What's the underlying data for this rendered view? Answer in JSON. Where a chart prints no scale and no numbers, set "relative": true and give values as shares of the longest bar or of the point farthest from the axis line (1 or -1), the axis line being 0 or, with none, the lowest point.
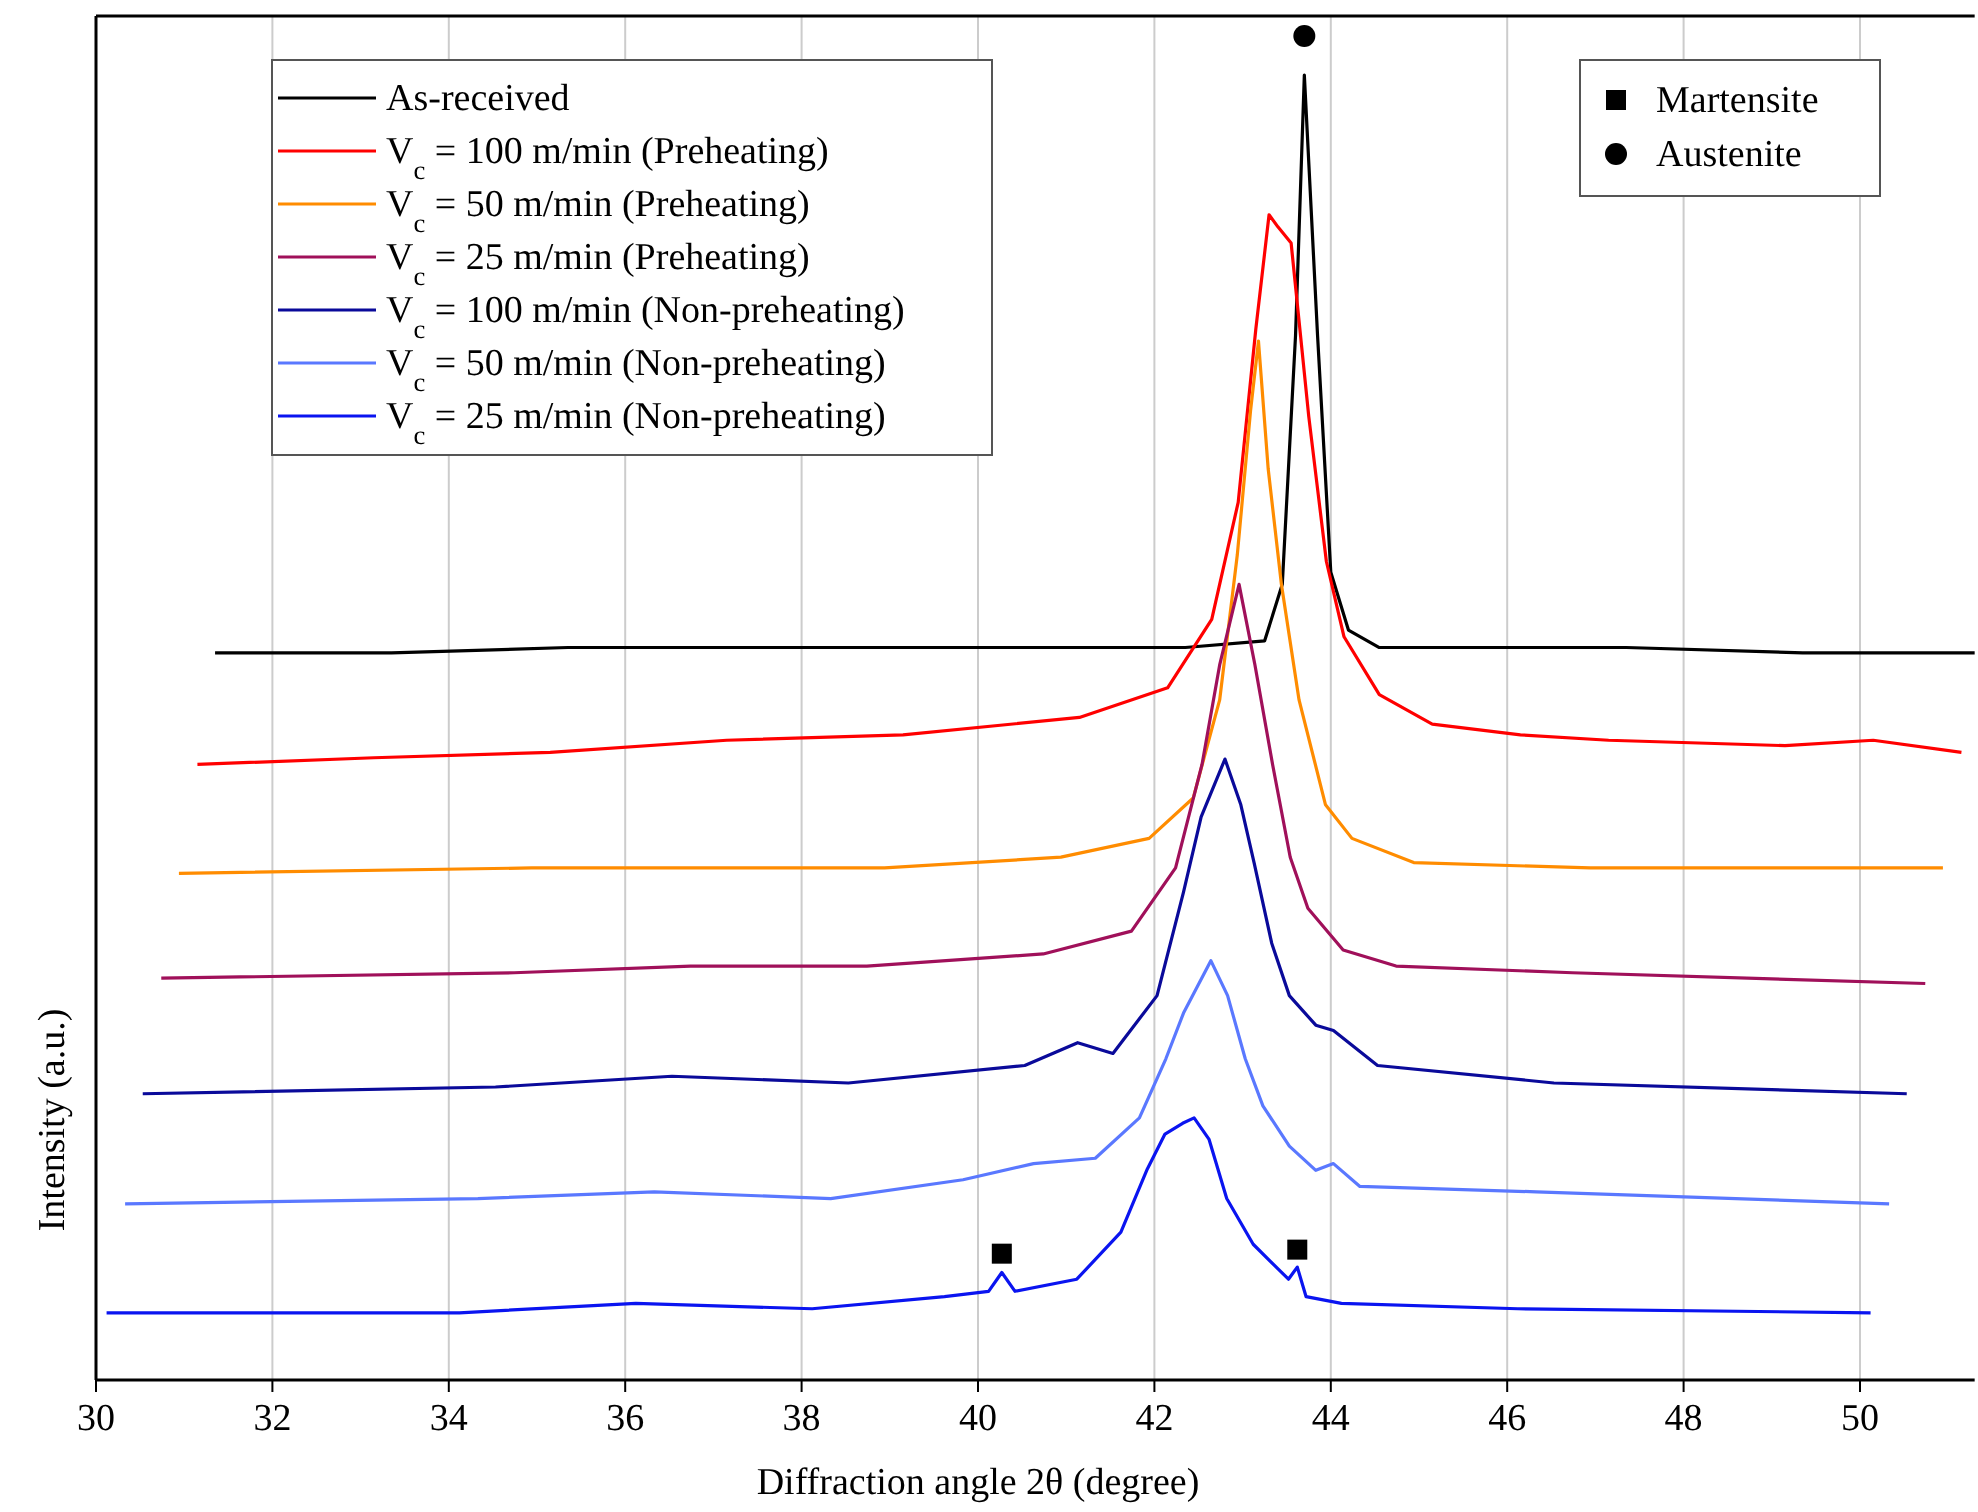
{
  "chart_data": {
    "type": "line",
    "relative": true,
    "xlabel": "Diffraction angle 2θ (degree)",
    "ylabel": "Intensity (a.u.)",
    "xlim": [
      30,
      51.3
    ],
    "xticks": [
      30,
      32,
      34,
      36,
      38,
      40,
      42,
      44,
      46,
      48,
      50
    ],
    "grid": true,
    "legend": "top left",
    "line_style": "solid",
    "series": [
      {
        "name": "As-received",
        "color": "#000000",
        "x": [
          31.35,
          33.35,
          35.35,
          37.35,
          39.35,
          41.35,
          42.35,
          43.25,
          43.45,
          43.6,
          43.7,
          43.85,
          44,
          44.2,
          44.55,
          45.35,
          47.35,
          49.35,
          51.3
        ],
        "values": [
          0.541,
          0.541,
          0.545,
          0.545,
          0.545,
          0.545,
          0.545,
          0.55,
          0.592,
          0.777,
          0.971,
          0.777,
          0.601,
          0.558,
          0.545,
          0.545,
          0.545,
          0.541,
          0.541
        ]
      },
      {
        "type": "scatter",
        "name": "Austenite",
        "color": "#000000",
        "marker": "circle",
        "x": [
          43.7
        ],
        "values": [
          1
        ]
      },
      {
        "name": "V$_{c}$ = 100 m/min (Preheating)",
        "color": "#ff0000",
        "x": [
          31.15,
          33.15,
          35.15,
          37.15,
          39.15,
          41.15,
          42.15,
          42.65,
          42.95,
          43.15,
          43.3,
          43.4,
          43.55,
          43.75,
          43.95,
          44.15,
          44.55,
          45.15,
          46.15,
          47.15,
          49.15,
          50.15,
          51.15
        ],
        "values": [
          0.458,
          0.463,
          0.467,
          0.476,
          0.48,
          0.493,
          0.515,
          0.566,
          0.653,
          0.782,
          0.867,
          0.858,
          0.846,
          0.717,
          0.609,
          0.553,
          0.51,
          0.488,
          0.48,
          0.476,
          0.472,
          0.476,
          0.467
        ]
      },
      {
        "name": "V$_{c}$ = 50 m/min (Preheating)",
        "color": "#ff8c00",
        "x": [
          30.94,
          34.94,
          38.94,
          40.94,
          41.94,
          42.44,
          42.74,
          42.94,
          43.09,
          43.18,
          43.29,
          43.44,
          43.64,
          43.94,
          44.24,
          44.94,
          46.94,
          50.94
        ],
        "values": [
          0.377,
          0.381,
          0.381,
          0.389,
          0.403,
          0.433,
          0.506,
          0.614,
          0.721,
          0.773,
          0.678,
          0.592,
          0.506,
          0.428,
          0.403,
          0.385,
          0.381,
          0.381
        ]
      },
      {
        "name": "V$_{c}$ = 25 m/min (Preheating)",
        "color": "#a0105a",
        "x": [
          30.74,
          34.74,
          36.74,
          38.74,
          40.74,
          41.74,
          42.24,
          42.54,
          42.74,
          42.96,
          43.14,
          43.34,
          43.54,
          43.74,
          44.14,
          44.74,
          46.74,
          50.74
        ],
        "values": [
          0.299,
          0.303,
          0.308,
          0.308,
          0.317,
          0.334,
          0.381,
          0.458,
          0.532,
          0.592,
          0.532,
          0.458,
          0.389,
          0.351,
          0.32,
          0.308,
          0.303,
          0.295
        ]
      },
      {
        "name": "V$_{c}$ = 100 m/min (Non-preheating)",
        "color": "#0a0a9a",
        "x": [
          30.53,
          34.53,
          36.53,
          38.53,
          40.53,
          41.13,
          41.53,
          42.03,
          42.33,
          42.53,
          42.8,
          42.98,
          43.13,
          43.33,
          43.53,
          43.83,
          44.03,
          44.53,
          46.53,
          50.53
        ],
        "values": [
          0.213,
          0.218,
          0.226,
          0.221,
          0.234,
          0.251,
          0.243,
          0.286,
          0.363,
          0.419,
          0.462,
          0.428,
          0.385,
          0.325,
          0.286,
          0.264,
          0.26,
          0.234,
          0.221,
          0.213
        ]
      },
      {
        "name": "V$_{c}$ = 50 m/min (Non-preheating)",
        "color": "#5a78ff",
        "x": [
          30.33,
          34.33,
          36.33,
          38.33,
          39.83,
          40.63,
          41.33,
          41.83,
          42.13,
          42.33,
          42.64,
          42.83,
          43.03,
          43.23,
          43.53,
          43.83,
          44.03,
          44.33,
          46.33,
          50.33
        ],
        "values": [
          0.131,
          0.135,
          0.14,
          0.135,
          0.149,
          0.161,
          0.165,
          0.195,
          0.239,
          0.273,
          0.312,
          0.286,
          0.239,
          0.204,
          0.174,
          0.156,
          0.161,
          0.144,
          0.14,
          0.131
        ]
      },
      {
        "name": "V$_{c}$ = 25 m/min (Non-preheating)",
        "color": "#0a14f0",
        "x": [
          30.12,
          34.12,
          36.12,
          38.12,
          39.62,
          40.12,
          40.27,
          40.42,
          41.12,
          41.62,
          41.92,
          42.12,
          42.32,
          42.45,
          42.62,
          42.82,
          43.12,
          43.52,
          43.62,
          43.72,
          44.12,
          46.12,
          50.12
        ],
        "values": [
          0.05,
          0.05,
          0.057,
          0.053,
          0.062,
          0.066,
          0.08,
          0.066,
          0.075,
          0.11,
          0.157,
          0.183,
          0.191,
          0.195,
          0.179,
          0.135,
          0.101,
          0.075,
          0.084,
          0.062,
          0.057,
          0.053,
          0.05
        ]
      },
      {
        "type": "scatter",
        "name": "Martensite",
        "color": "#000000",
        "marker": "square",
        "x": [
          40.27,
          43.62
        ],
        "values": [
          0.094,
          0.097
        ]
      }
    ]
  }
}
